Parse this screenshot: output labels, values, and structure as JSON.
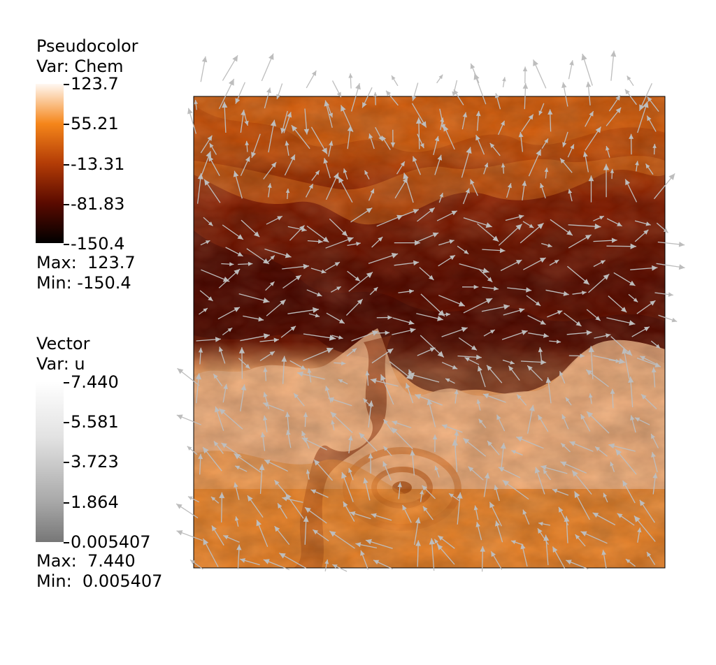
{
  "pseudocolor_legend": {
    "title_line1": "Pseudocolor",
    "title_line2": "Var: Chem",
    "ticks": [
      "123.7",
      "55.21",
      "-13.31",
      "-81.83",
      "-150.4"
    ],
    "max_label": "Max:  123.7",
    "min_label": "Min: -150.4"
  },
  "vector_legend": {
    "title_line1": "Vector",
    "title_line2": "Var: u",
    "ticks": [
      "7.440",
      "5.581",
      "3.723",
      "1.864",
      "0.005407"
    ],
    "max_label": "Max:  7.440",
    "min_label": "Min:  0.005407"
  },
  "colors": {
    "chem_high": "#fff8f2",
    "chem_mid_high": "#f5861a",
    "chem_mid": "#b33c06",
    "chem_mid_low": "#5a0a00",
    "chem_low": "#000000",
    "vector_high": "#ffffff",
    "vector_low": "#777777",
    "arrow": "#bdbdbd"
  }
}
